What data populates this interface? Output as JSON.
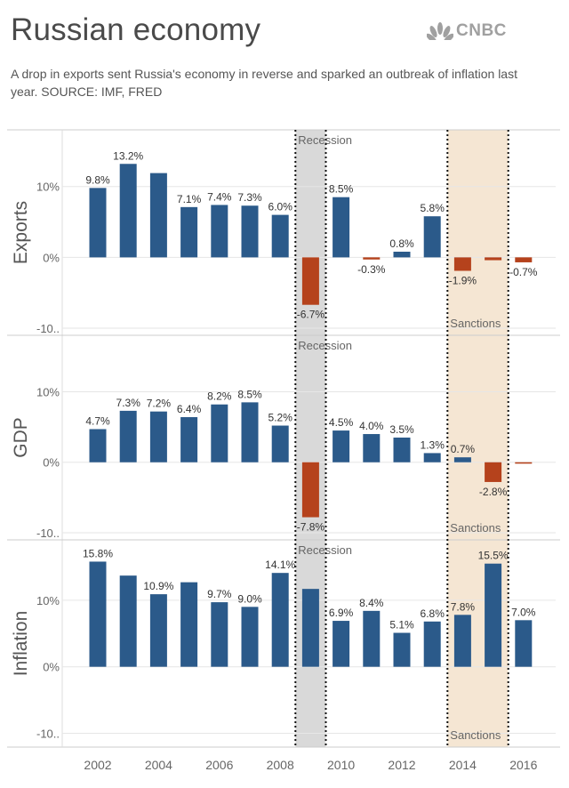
{
  "header": {
    "title": "Russian economy",
    "logo_text": "CNBC",
    "subtitle": "A drop in exports sent Russia's economy in reverse and sparked an outbreak of inflation last year. SOURCE: IMF, FRED"
  },
  "colors": {
    "positive": "#2b5a8a",
    "negative": "#b5421c",
    "recession_band": "#d9d9d9",
    "sanctions_band": "#f5e6d3",
    "grid": "#e6e6e6",
    "axis_text": "#666666",
    "label_text": "#333333"
  },
  "chart_data": [
    {
      "type": "bar",
      "panel": "Exports",
      "ylabel": "Exports",
      "ylim": [
        -10,
        17
      ],
      "yticks": [
        {
          "value": 10,
          "label": "10%"
        },
        {
          "value": 0,
          "label": "0%"
        },
        {
          "value": -10,
          "label": "-10.."
        }
      ],
      "x": [
        2002,
        2003,
        2004,
        2005,
        2006,
        2007,
        2008,
        2009,
        2010,
        2011,
        2012,
        2013,
        2014,
        2015,
        2016
      ],
      "values": [
        9.8,
        13.2,
        11.9,
        7.1,
        7.4,
        7.3,
        6.0,
        -6.7,
        8.5,
        -0.3,
        0.8,
        5.8,
        -1.9,
        -0.4,
        -0.7
      ],
      "labels": [
        "9.8%",
        "13.2%",
        "",
        "7.1%",
        "7.4%",
        "7.3%",
        "6.0%",
        "-6.7%",
        "8.5%",
        "-0.3%",
        "0.8%",
        "5.8%",
        "-1.9%",
        "",
        "-0.7%"
      ],
      "recession_label": "Recession",
      "sanctions_label": "Sanctions"
    },
    {
      "type": "bar",
      "panel": "GDP",
      "ylabel": "GDP",
      "ylim": [
        -10,
        17
      ],
      "yticks": [
        {
          "value": 10,
          "label": "10%"
        },
        {
          "value": 0,
          "label": "0%"
        },
        {
          "value": -10,
          "label": "-10.."
        }
      ],
      "x": [
        2002,
        2003,
        2004,
        2005,
        2006,
        2007,
        2008,
        2009,
        2010,
        2011,
        2012,
        2013,
        2014,
        2015,
        2016
      ],
      "values": [
        4.7,
        7.3,
        7.2,
        6.4,
        8.2,
        8.5,
        5.2,
        -7.8,
        4.5,
        4.0,
        3.5,
        1.3,
        0.7,
        -2.8,
        -0.2
      ],
      "labels": [
        "4.7%",
        "7.3%",
        "7.2%",
        "6.4%",
        "8.2%",
        "8.5%",
        "5.2%",
        "-7.8%",
        "4.5%",
        "4.0%",
        "3.5%",
        "1.3%",
        "0.7%",
        "-2.8%",
        ""
      ],
      "recession_label": "Recession",
      "sanctions_label": "Sanctions"
    },
    {
      "type": "bar",
      "panel": "Inflation",
      "ylabel": "Inflation",
      "ylim": [
        -11,
        18
      ],
      "yticks": [
        {
          "value": 10,
          "label": "10%"
        },
        {
          "value": 0,
          "label": "0%"
        },
        {
          "value": -10,
          "label": "-10.."
        }
      ],
      "x": [
        2002,
        2003,
        2004,
        2005,
        2006,
        2007,
        2008,
        2009,
        2010,
        2011,
        2012,
        2013,
        2014,
        2015,
        2016
      ],
      "values": [
        15.8,
        13.7,
        10.9,
        12.7,
        9.7,
        9.0,
        14.1,
        11.7,
        6.9,
        8.4,
        5.1,
        6.8,
        7.8,
        15.5,
        7.0
      ],
      "labels": [
        "15.8%",
        "",
        "10.9%",
        "",
        "9.7%",
        "9.0%",
        "14.1%",
        "",
        "6.9%",
        "8.4%",
        "5.1%",
        "6.8%",
        "7.8%",
        "15.5%",
        "7.0%"
      ],
      "recession_label": "Recession",
      "sanctions_label": "Sanctions"
    }
  ],
  "x_axis": {
    "tick_labels": [
      "2002",
      "2004",
      "2006",
      "2008",
      "2010",
      "2012",
      "2014",
      "2016"
    ],
    "recession_span": [
      2008.5,
      2009.5
    ],
    "sanctions_span": [
      2013.5,
      2015.5
    ]
  }
}
